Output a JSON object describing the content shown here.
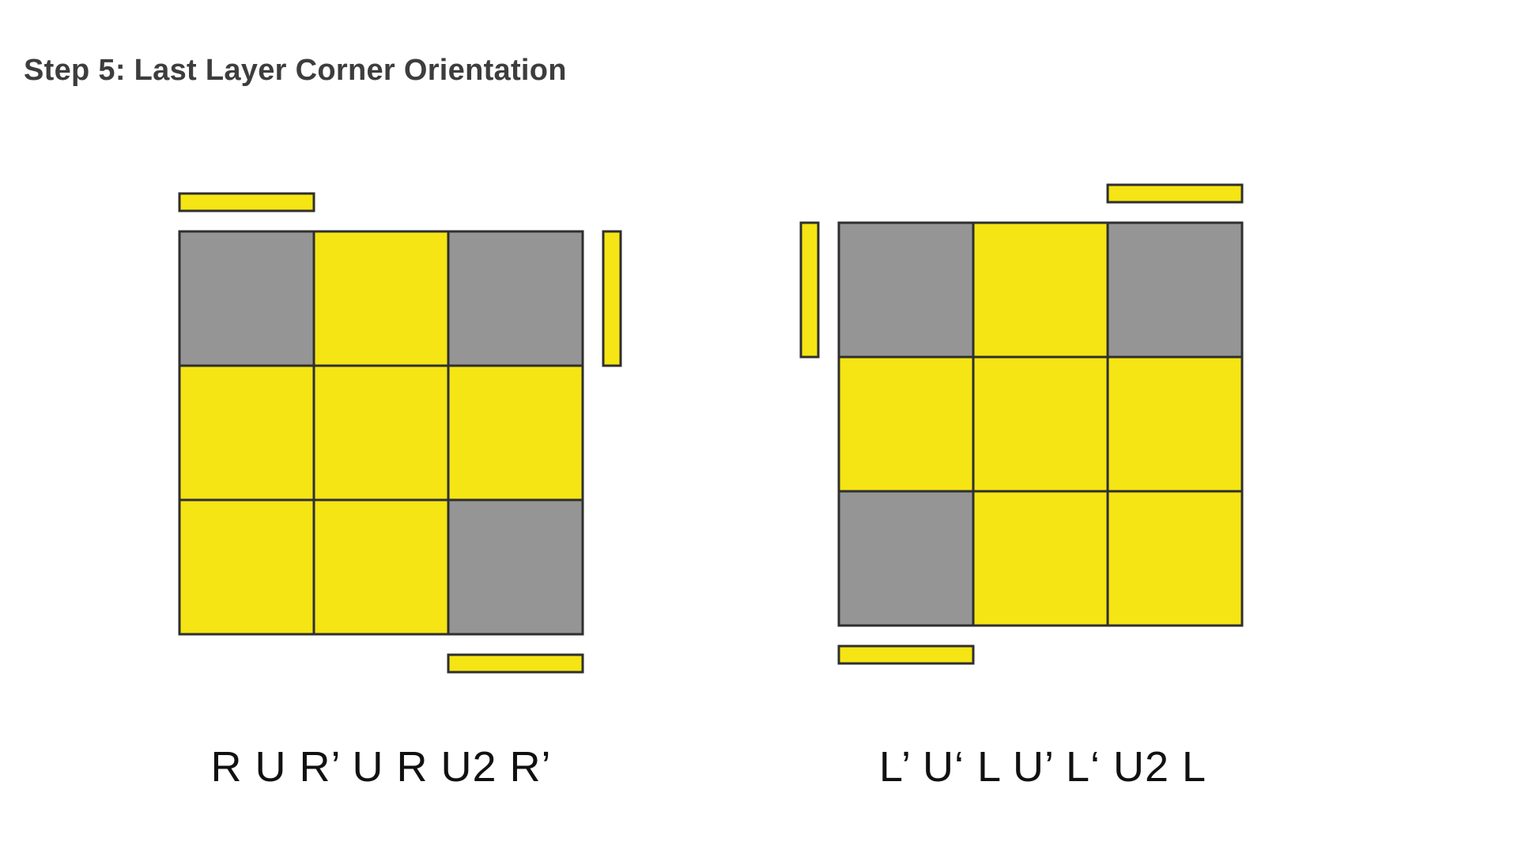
{
  "title": "Step 5: Last Layer Corner Orientation",
  "colors": {
    "yellow": "#f5e514",
    "gray": "#959595",
    "outline": "#2f2f2f"
  },
  "cases": [
    {
      "algorithm": "R U R’ U R U2 R’",
      "grid": [
        [
          "gray",
          "yellow",
          "gray"
        ],
        [
          "yellow",
          "yellow",
          "yellow"
        ],
        [
          "yellow",
          "yellow",
          "gray"
        ]
      ],
      "side_stickers": [
        {
          "side": "top",
          "index": 0
        },
        {
          "side": "right",
          "index": 0
        },
        {
          "side": "bottom",
          "index": 2
        }
      ]
    },
    {
      "algorithm": "L’ U‘ L U’ L‘ U2 L",
      "grid": [
        [
          "gray",
          "yellow",
          "gray"
        ],
        [
          "yellow",
          "yellow",
          "yellow"
        ],
        [
          "gray",
          "yellow",
          "yellow"
        ]
      ],
      "side_stickers": [
        {
          "side": "top",
          "index": 2
        },
        {
          "side": "left",
          "index": 0
        },
        {
          "side": "bottom",
          "index": 0
        }
      ]
    }
  ]
}
